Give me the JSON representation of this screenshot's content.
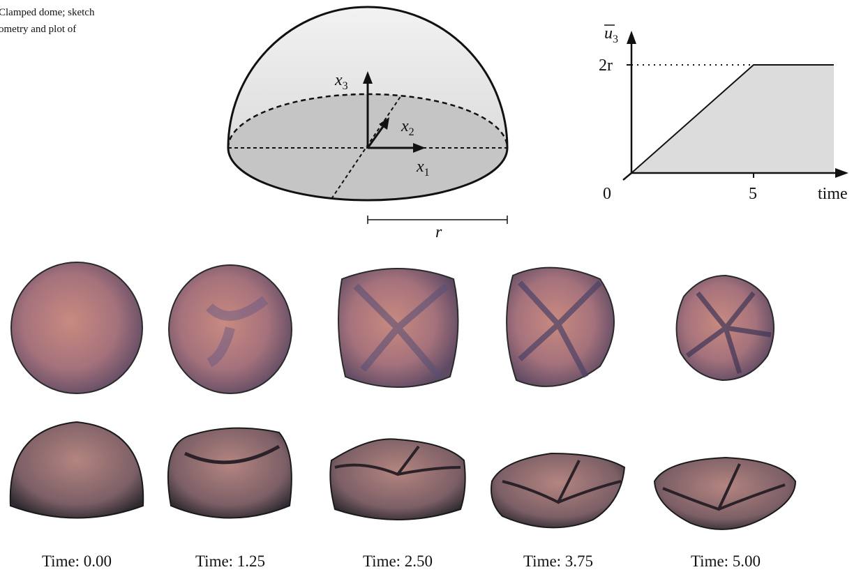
{
  "caption": {
    "lines": [
      "Clamped dome; sketch",
      "ometry and plot of"
    ]
  },
  "sketch": {
    "x3": {
      "base": "x",
      "sub": "3"
    },
    "x2": {
      "base": "x",
      "sub": "2"
    },
    "x1": {
      "base": "x",
      "sub": "1"
    },
    "radius": "r"
  },
  "plot": {
    "y_label": {
      "base": "u",
      "sub": "3"
    },
    "y_tick": "2r",
    "origin": "0",
    "x_tick": "5",
    "x_label": "time"
  },
  "frames": [
    "Time: 0.00",
    "Time: 1.25",
    "Time: 2.50",
    "Time: 3.75",
    "Time: 5.00"
  ]
}
